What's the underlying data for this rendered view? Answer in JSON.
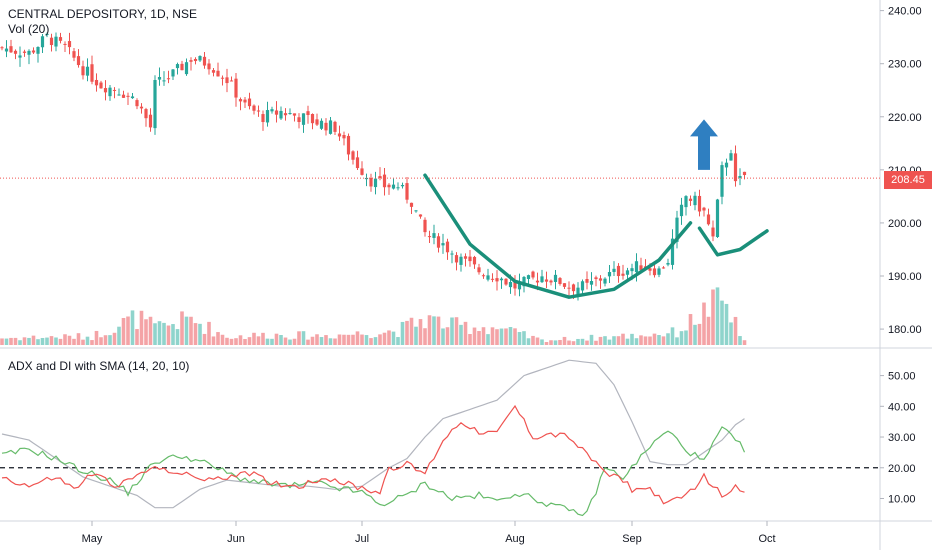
{
  "header": {
    "title": "CENTRAL DEPOSITORY, 1D, NSE",
    "volume_label": "Vol (20)"
  },
  "indicator": {
    "label": "ADX and DI with SMA (14, 20, 10)"
  },
  "price_tag": "208.45",
  "colors": {
    "up": "#26a69a",
    "down": "#ef5350",
    "up_volume": "#8fd4cc",
    "down_volume": "#f4a3a6",
    "adx": "#b2b5be",
    "di_plus": "#66bb6a",
    "di_minus": "#ef5350",
    "annotation_curve": "#1a8f7a",
    "arrow": "#2f7fc1"
  },
  "chart_data": [
    {
      "type": "candlestick",
      "title": "CENTRAL DEPOSITORY, 1D, NSE",
      "ylim": [
        177,
        242
      ],
      "y_ticks": [
        "240.00",
        "230.00",
        "220.00",
        "210.00",
        "200.00",
        "190.00",
        "180.00"
      ],
      "x_ticks": [
        "May",
        "Jun",
        "Jul",
        "Aug",
        "Sep",
        "Oct"
      ],
      "last_price": 208.45,
      "close_path": [
        [
          0,
          233
        ],
        [
          6,
          232
        ],
        [
          10,
          235
        ],
        [
          14,
          233
        ],
        [
          18,
          229
        ],
        [
          22,
          226
        ],
        [
          26,
          225
        ],
        [
          30,
          223
        ],
        [
          33,
          218
        ],
        [
          34,
          226
        ],
        [
          38,
          228
        ],
        [
          42,
          231
        ],
        [
          46,
          230
        ],
        [
          50,
          227
        ],
        [
          54,
          222
        ],
        [
          58,
          220
        ],
        [
          62,
          221
        ],
        [
          66,
          220
        ],
        [
          70,
          219
        ],
        [
          74,
          218
        ],
        [
          78,
          212
        ],
        [
          82,
          208
        ],
        [
          85,
          207
        ],
        [
          88,
          207
        ],
        [
          91,
          204
        ],
        [
          94,
          198
        ],
        [
          98,
          196
        ],
        [
          102,
          193
        ],
        [
          106,
          191
        ],
        [
          110,
          190
        ],
        [
          114,
          188
        ],
        [
          117,
          189
        ],
        [
          120,
          190
        ],
        [
          124,
          189
        ],
        [
          126,
          188
        ],
        [
          130,
          188
        ],
        [
          134,
          190
        ],
        [
          138,
          191
        ],
        [
          142,
          192
        ],
        [
          146,
          191
        ],
        [
          148,
          193
        ],
        [
          150,
          200
        ],
        [
          152,
          205
        ],
        [
          154,
          204
        ],
        [
          156,
          202
        ],
        [
          158,
          197
        ],
        [
          160,
          210
        ],
        [
          162,
          214
        ],
        [
          163,
          207
        ],
        [
          165,
          209
        ]
      ],
      "volume_relative": [
        [
          0,
          0.12
        ],
        [
          20,
          0.15
        ],
        [
          30,
          0.48
        ],
        [
          34,
          0.3
        ],
        [
          42,
          0.45
        ],
        [
          50,
          0.14
        ],
        [
          60,
          0.18
        ],
        [
          70,
          0.16
        ],
        [
          80,
          0.2
        ],
        [
          88,
          0.25
        ],
        [
          94,
          0.46
        ],
        [
          100,
          0.34
        ],
        [
          110,
          0.3
        ],
        [
          120,
          0.08
        ],
        [
          130,
          0.12
        ],
        [
          140,
          0.16
        ],
        [
          150,
          0.22
        ],
        [
          160,
          0.8
        ],
        [
          163,
          0.35
        ],
        [
          165,
          0.06
        ]
      ]
    },
    {
      "type": "line",
      "title": "ADX and DI with SMA (14, 20, 10)",
      "ylim": [
        3,
        58
      ],
      "y_ticks": [
        "50.00",
        "40.00",
        "30.00",
        "20.00",
        "10.00"
      ],
      "reference_line": 20,
      "series": [
        {
          "key": "adx",
          "points": [
            [
              0,
              31
            ],
            [
              6,
              29
            ],
            [
              12,
              23
            ],
            [
              18,
              17
            ],
            [
              24,
              14
            ],
            [
              30,
              11
            ],
            [
              34,
              7
            ],
            [
              38,
              7
            ],
            [
              44,
              13
            ],
            [
              50,
              16
            ],
            [
              56,
              15
            ],
            [
              62,
              14
            ],
            [
              68,
              14
            ],
            [
              74,
              13
            ],
            [
              80,
              14
            ],
            [
              86,
              20
            ],
            [
              90,
              23
            ],
            [
              94,
              30
            ],
            [
              98,
              36
            ],
            [
              104,
              39
            ],
            [
              110,
              42
            ],
            [
              116,
              50
            ],
            [
              122,
              53
            ],
            [
              126,
              55
            ],
            [
              132,
              54
            ],
            [
              136,
              47
            ],
            [
              140,
              35
            ],
            [
              144,
              22
            ],
            [
              148,
              21
            ],
            [
              152,
              21
            ],
            [
              156,
              25
            ],
            [
              160,
              29
            ],
            [
              163,
              34
            ],
            [
              165,
              36
            ]
          ]
        },
        {
          "key": "di_plus",
          "points": [
            [
              0,
              24
            ],
            [
              6,
              26
            ],
            [
              12,
              23
            ],
            [
              18,
              19
            ],
            [
              24,
              16
            ],
            [
              28,
              12
            ],
            [
              34,
              22
            ],
            [
              40,
              24
            ],
            [
              46,
              21
            ],
            [
              52,
              17
            ],
            [
              58,
              15
            ],
            [
              64,
              14
            ],
            [
              70,
              15
            ],
            [
              76,
              13
            ],
            [
              80,
              12
            ],
            [
              84,
              8
            ],
            [
              90,
              11
            ],
            [
              94,
              15
            ],
            [
              100,
              10
            ],
            [
              106,
              11
            ],
            [
              110,
              9
            ],
            [
              114,
              12
            ],
            [
              120,
              9
            ],
            [
              126,
              6
            ],
            [
              130,
              5
            ],
            [
              134,
              20
            ],
            [
              138,
              17
            ],
            [
              140,
              20
            ],
            [
              144,
              27
            ],
            [
              148,
              32
            ],
            [
              152,
              26
            ],
            [
              156,
              22
            ],
            [
              160,
              33
            ],
            [
              162,
              30
            ],
            [
              165,
              26
            ]
          ]
        },
        {
          "key": "di_minus",
          "points": [
            [
              0,
              17
            ],
            [
              6,
              14
            ],
            [
              12,
              17
            ],
            [
              16,
              13
            ],
            [
              20,
              18
            ],
            [
              26,
              14
            ],
            [
              32,
              19
            ],
            [
              36,
              20
            ],
            [
              42,
              17
            ],
            [
              48,
              16
            ],
            [
              54,
              19
            ],
            [
              60,
              15
            ],
            [
              66,
              14
            ],
            [
              72,
              17
            ],
            [
              78,
              14
            ],
            [
              84,
              12
            ],
            [
              86,
              20
            ],
            [
              90,
              21
            ],
            [
              94,
              18
            ],
            [
              98,
              29
            ],
            [
              102,
              35
            ],
            [
              106,
              32
            ],
            [
              110,
              31
            ],
            [
              114,
              40
            ],
            [
              118,
              30
            ],
            [
              122,
              31
            ],
            [
              126,
              30
            ],
            [
              130,
              24
            ],
            [
              134,
              19
            ],
            [
              138,
              16
            ],
            [
              140,
              13
            ],
            [
              144,
              13
            ],
            [
              148,
              8
            ],
            [
              152,
              11
            ],
            [
              156,
              17
            ],
            [
              160,
              11
            ],
            [
              163,
              14
            ],
            [
              165,
              13
            ]
          ]
        }
      ]
    }
  ]
}
